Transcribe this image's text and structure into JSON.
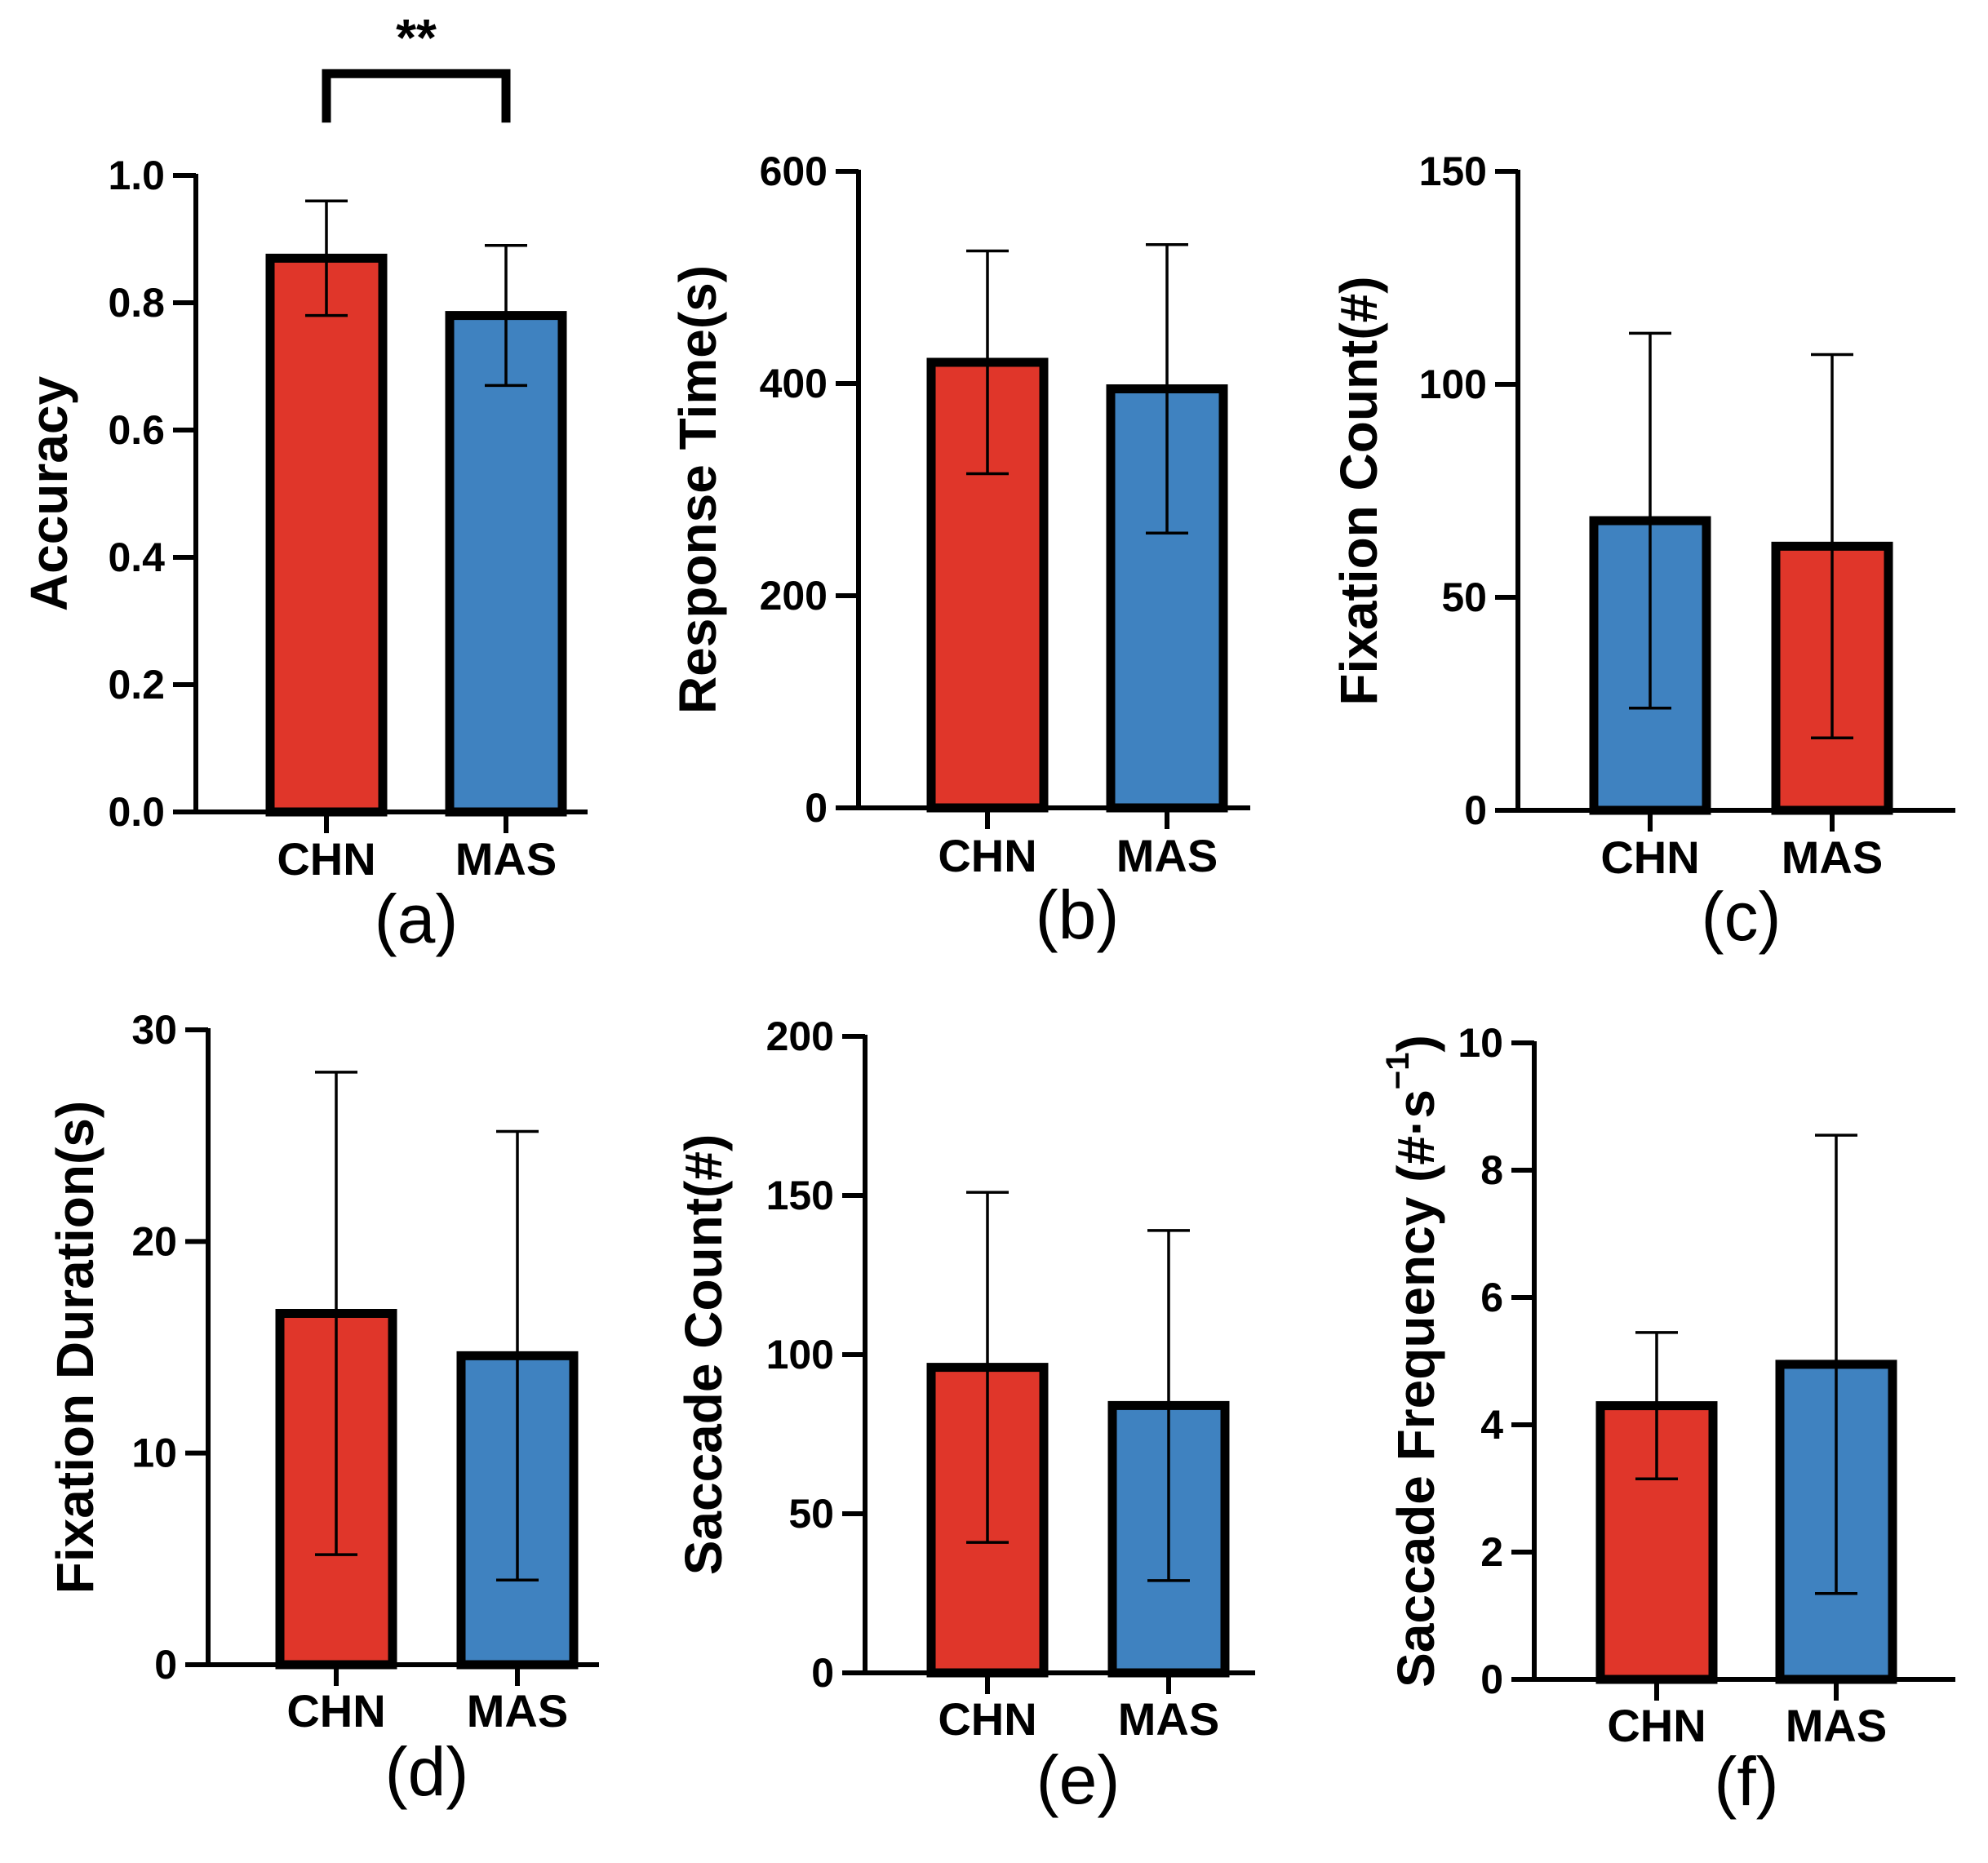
{
  "chart_data": [
    {
      "panel": "(a)",
      "type": "bar",
      "ylabel": "Accuracy",
      "ylim": [
        0,
        1.0
      ],
      "yticks": [
        "0.0",
        "0.2",
        "0.4",
        "0.6",
        "0.8",
        "1.0"
      ],
      "categories": [
        "CHN",
        "MAS"
      ],
      "values": [
        0.87,
        0.78
      ],
      "errors": [
        0.09,
        0.11
      ],
      "bar_colors": [
        "#e0362a",
        "#3f82c0"
      ],
      "significance": {
        "between": [
          0,
          1
        ],
        "label": "**",
        "height": 1.16
      }
    },
    {
      "panel": "(b)",
      "type": "bar",
      "ylabel": "Response Time(s)",
      "ylim": [
        0,
        600
      ],
      "yticks": [
        "0",
        "200",
        "400",
        "600"
      ],
      "categories": [
        "CHN",
        "MAS"
      ],
      "values": [
        420,
        395
      ],
      "errors": [
        105,
        136
      ],
      "bar_colors": [
        "#e0362a",
        "#3f82c0"
      ]
    },
    {
      "panel": "(c)",
      "type": "bar",
      "ylabel": "Fixation Count(#)",
      "ylim": [
        0,
        150
      ],
      "yticks": [
        "0",
        "50",
        "100",
        "150"
      ],
      "categories": [
        "CHN",
        "MAS"
      ],
      "values": [
        68,
        62
      ],
      "errors": [
        44,
        45
      ],
      "bar_colors": [
        "#3f82c0",
        "#e0362a"
      ]
    },
    {
      "panel": "(d)",
      "type": "bar",
      "ylabel": "Fixation Duration(s)",
      "ylim": [
        0,
        30
      ],
      "yticks": [
        "0",
        "10",
        "20",
        "30"
      ],
      "categories": [
        "CHN",
        "MAS"
      ],
      "values": [
        16.6,
        14.6
      ],
      "errors": [
        11.4,
        10.6
      ],
      "bar_colors": [
        "#e0362a",
        "#3f82c0"
      ]
    },
    {
      "panel": "(e)",
      "type": "bar",
      "ylabel": "Saccade Count(#)",
      "ylim": [
        0,
        200
      ],
      "yticks": [
        "0",
        "50",
        "100",
        "150",
        "200"
      ],
      "categories": [
        "CHN",
        "MAS"
      ],
      "values": [
        96,
        84
      ],
      "errors": [
        55,
        55
      ],
      "bar_colors": [
        "#e0362a",
        "#3f82c0"
      ]
    },
    {
      "panel": "(f)",
      "type": "bar",
      "ylabel": "Saccade Frequency (#·s",
      "ylabel_sup": "−1",
      "ylabel_tail": ")",
      "ylim": [
        0,
        10
      ],
      "yticks": [
        "0",
        "2",
        "4",
        "6",
        "8",
        "10"
      ],
      "categories": [
        "CHN",
        "MAS"
      ],
      "values": [
        4.3,
        4.95
      ],
      "errors": [
        1.15,
        3.6
      ],
      "bar_colors": [
        "#e0362a",
        "#3f82c0"
      ]
    }
  ]
}
